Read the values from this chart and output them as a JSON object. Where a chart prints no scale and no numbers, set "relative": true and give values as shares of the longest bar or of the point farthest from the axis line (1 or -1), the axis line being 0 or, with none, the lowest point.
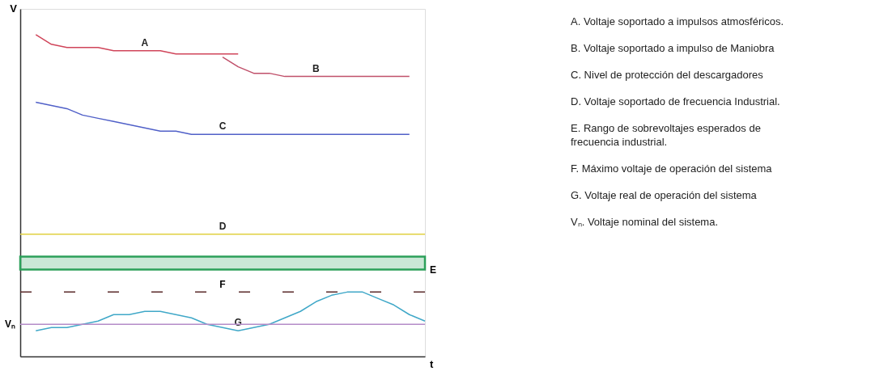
{
  "chart_data": {
    "type": "line",
    "relative": true,
    "xlabel": "t",
    "ylabel": "V",
    "tick_labels": false,
    "legend": false,
    "line_style": "solid",
    "marker": "none",
    "categories": [
      null,
      null,
      null,
      null,
      null,
      null,
      null,
      null,
      null,
      null,
      null,
      null,
      null,
      null,
      null,
      null,
      null,
      null,
      null,
      null,
      null,
      null,
      null,
      null,
      null,
      null,
      null
    ],
    "series": [
      {
        "name": "A",
        "color": "#d0455a",
        "values": [
          null,
          1.0,
          0.97,
          0.96,
          0.96,
          0.96,
          0.95,
          0.95,
          0.95,
          0.95,
          0.94,
          0.94,
          0.94,
          0.94,
          0.94,
          null,
          null,
          null,
          null,
          null,
          null,
          null,
          null,
          null,
          null,
          null,
          null
        ]
      },
      {
        "name": "B",
        "color": "#c0506a",
        "values": [
          null,
          null,
          null,
          null,
          null,
          null,
          null,
          null,
          null,
          null,
          null,
          null,
          null,
          0.93,
          0.9,
          0.88,
          0.88,
          0.87,
          0.87,
          0.87,
          0.87,
          0.87,
          0.87,
          0.87,
          0.87,
          0.87,
          null
        ]
      },
      {
        "name": "C",
        "color": "#5060c8",
        "values": [
          null,
          0.79,
          0.78,
          0.77,
          0.75,
          0.74,
          0.73,
          0.72,
          0.71,
          0.7,
          0.7,
          0.69,
          0.69,
          0.69,
          0.69,
          0.69,
          0.69,
          0.69,
          0.69,
          0.69,
          0.69,
          0.69,
          0.69,
          0.69,
          0.69,
          0.69,
          null
        ]
      },
      {
        "name": "D",
        "color": "#e0d040",
        "values": [
          0.38,
          0.38,
          0.38,
          0.38,
          0.38,
          0.38,
          0.38,
          0.38,
          0.38,
          0.38,
          0.38,
          0.38,
          0.38,
          0.38,
          0.38,
          0.38,
          0.38,
          0.38,
          0.38,
          0.38,
          0.38,
          0.38,
          0.38,
          0.38,
          0.38,
          0.38,
          0.38
        ]
      },
      {
        "name": "G",
        "color": "#40a8c8",
        "values": [
          null,
          0.08,
          0.09,
          0.09,
          0.1,
          0.11,
          0.13,
          0.13,
          0.14,
          0.14,
          0.13,
          0.12,
          0.1,
          0.09,
          0.08,
          0.09,
          0.1,
          0.12,
          0.14,
          0.17,
          0.19,
          0.2,
          0.2,
          0.18,
          0.16,
          0.13,
          0.11
        ]
      }
    ],
    "bands": [
      {
        "axis": "y",
        "from": 0.27,
        "to": 0.31,
        "label": "E",
        "color": "#2ca05a"
      }
    ],
    "ref_lines": [
      {
        "axis": "y",
        "value": 0.2,
        "label": "F",
        "color": "#5a2a2a",
        "line_style": "dashed"
      },
      {
        "axis": "y",
        "value": 0.1,
        "label": "Vₙ",
        "color": "#b48cc8",
        "line_style": "solid"
      }
    ],
    "annotations": [
      "A. Voltaje soportado a impulsos atmosféricos.",
      "B. Voltaje soportado a impulso de Maniobra",
      "C. Nivel de protección del descargadores",
      "D. Voltaje soportado de frecuencia Industrial.",
      "E. Rango de sobrevoltajes esperados de frecuencia industrial.",
      "F. Máximo voltaje de operación del sistema",
      "G. Voltaje real de operación del sistema",
      "Vₙ. Voltaje nominal del sistema."
    ]
  }
}
